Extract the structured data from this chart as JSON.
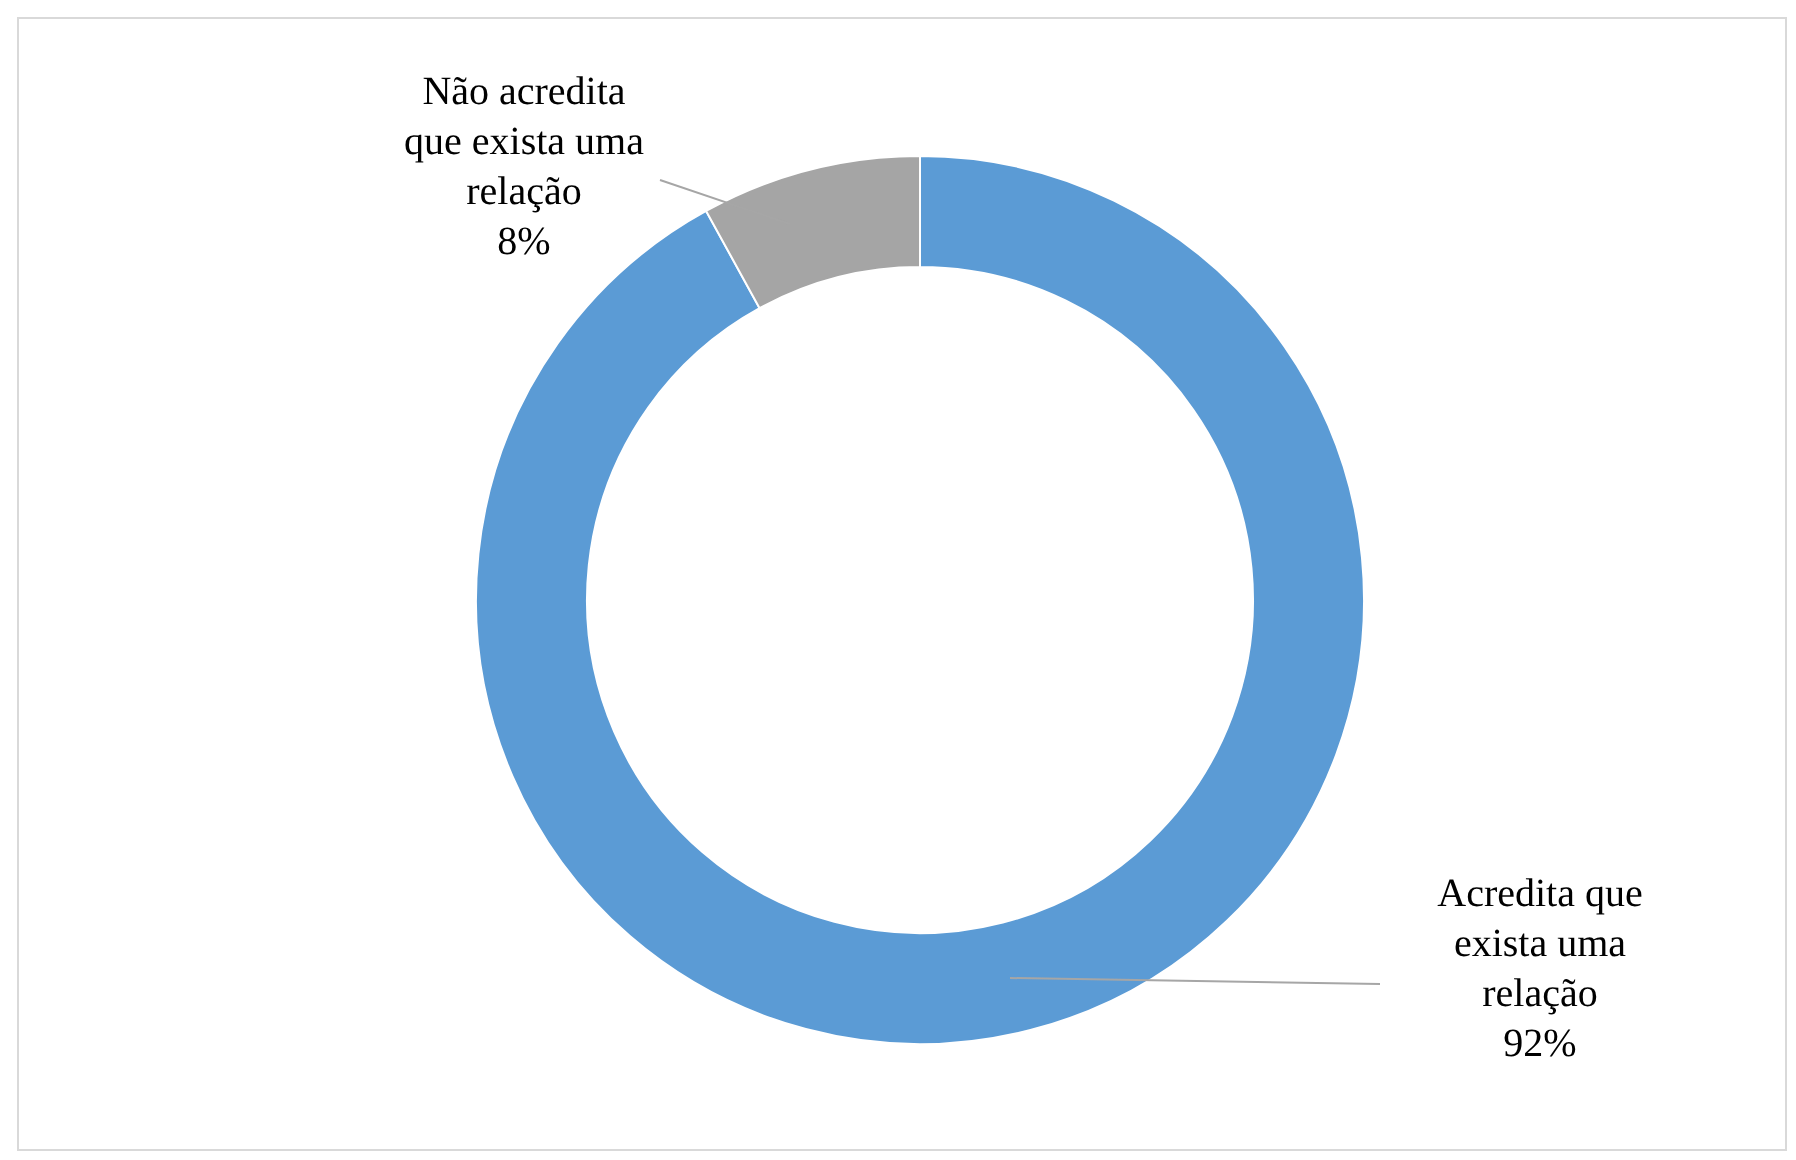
{
  "chart_data": {
    "type": "donut",
    "categories": [
      "Acredita que exista uma relação",
      "Não acredita que exista uma relação"
    ],
    "values": [
      92,
      8
    ],
    "colors": [
      "#5b9bd5",
      "#a5a5a5"
    ],
    "value_labels": [
      "92%",
      "8%"
    ]
  }
}
